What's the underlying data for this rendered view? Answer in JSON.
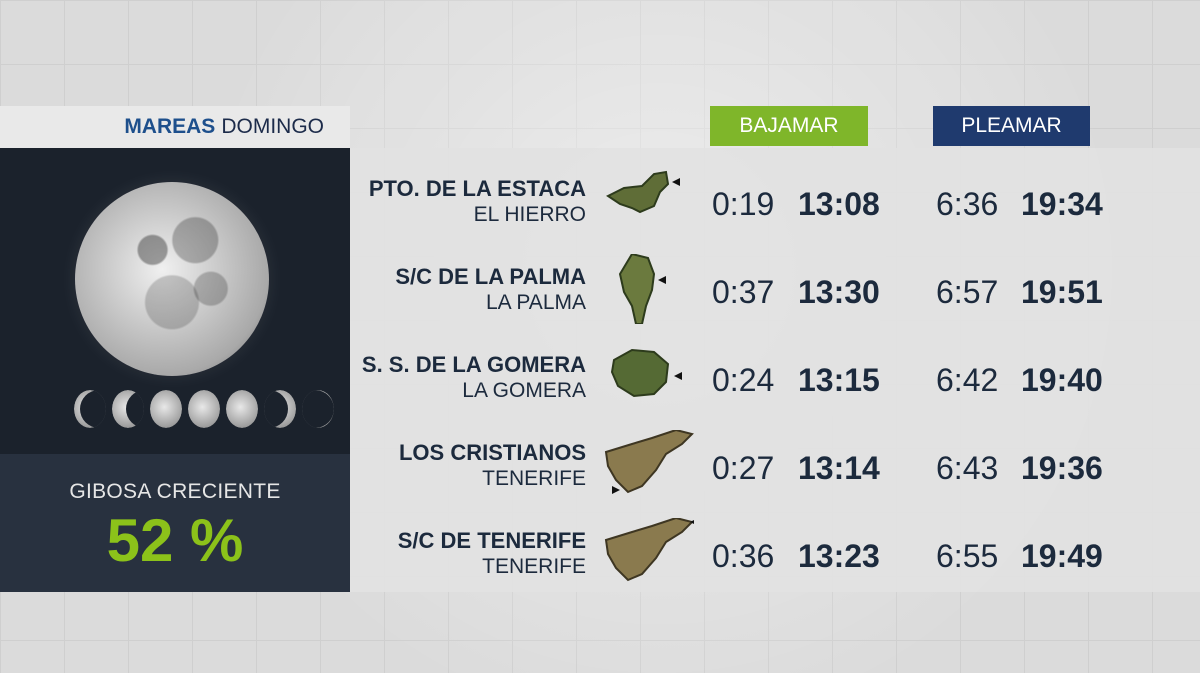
{
  "header": {
    "title_strong": "MAREAS",
    "title_day": "DOMINGO"
  },
  "columns": {
    "low_tide": "BAJAMAR",
    "high_tide": "PLEAMAR"
  },
  "moon": {
    "phase": "GIBOSA CRECIENTE",
    "percent": "52 %"
  },
  "accent_colors": {
    "green": "#7fb62a",
    "navy": "#1f3a6e",
    "dark": "#1b222c"
  },
  "rows": [
    {
      "port": "PTO. DE LA ESTACA",
      "island": "EL HIERRO",
      "low1": "0:19",
      "low2": "13:08",
      "high1": "6:36",
      "high2": "19:34",
      "icon": "el-hierro-island-icon"
    },
    {
      "port": "S/C DE LA PALMA",
      "island": "LA PALMA",
      "low1": "0:37",
      "low2": "13:30",
      "high1": "6:57",
      "high2": "19:51",
      "icon": "la-palma-island-icon"
    },
    {
      "port": "S. S. DE LA GOMERA",
      "island": "LA GOMERA",
      "low1": "0:24",
      "low2": "13:15",
      "high1": "6:42",
      "high2": "19:40",
      "icon": "la-gomera-island-icon"
    },
    {
      "port": "LOS CRISTIANOS",
      "island": "TENERIFE",
      "low1": "0:27",
      "low2": "13:14",
      "high1": "6:43",
      "high2": "19:36",
      "icon": "tenerife-island-icon"
    },
    {
      "port": "S/C DE TENERIFE",
      "island": "TENERIFE",
      "low1": "0:36",
      "low2": "13:23",
      "high1": "6:55",
      "high2": "19:49",
      "icon": "tenerife-island-icon"
    }
  ]
}
